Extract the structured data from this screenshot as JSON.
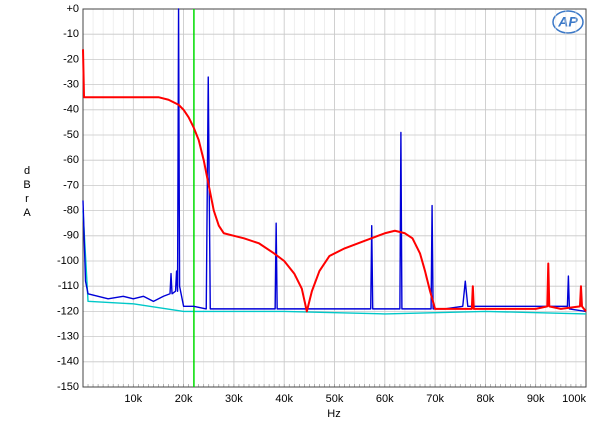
{
  "logo_text": "AP",
  "chart_data": {
    "type": "line",
    "xlabel": "Hz",
    "ylabel": "dBr A",
    "xlim": [
      0,
      100000
    ],
    "ylim": [
      -150,
      0
    ],
    "xticks": [
      {
        "value": 10000,
        "label": "10k"
      },
      {
        "value": 20000,
        "label": "20k"
      },
      {
        "value": 30000,
        "label": "30k"
      },
      {
        "value": 40000,
        "label": "40k"
      },
      {
        "value": 50000,
        "label": "50k"
      },
      {
        "value": 60000,
        "label": "60k"
      },
      {
        "value": 70000,
        "label": "70k"
      },
      {
        "value": 80000,
        "label": "80k"
      },
      {
        "value": 90000,
        "label": "90k"
      },
      {
        "value": 100000,
        "label": "100k"
      }
    ],
    "yticks": [
      {
        "value": 0,
        "label": "+0"
      },
      -10,
      -20,
      -30,
      -40,
      -50,
      -60,
      -70,
      -80,
      -90,
      -100,
      -110,
      -120,
      -130,
      -140,
      -150
    ],
    "grid": true,
    "vline": {
      "x": 22050,
      "color": "#00dd00"
    },
    "series": [
      {
        "color": "#00c8c8",
        "x": [
          0,
          1000,
          10000,
          20000,
          40000,
          60000,
          80000,
          100000
        ],
        "values": [
          -80,
          -116,
          -117,
          -120,
          -120,
          -121,
          -120,
          -121
        ]
      },
      {
        "color": "#0000d8",
        "x": [
          0,
          500,
          1000,
          3000,
          5000,
          8000,
          10000,
          12000,
          14000,
          16000,
          17300,
          17500,
          17700,
          18400,
          18600,
          18800,
          19000,
          19200,
          19600,
          20000,
          22000,
          24500,
          24900,
          25300,
          27000,
          30000,
          35000,
          38200,
          38400,
          38600,
          42000,
          47000,
          52000,
          57200,
          57400,
          57600,
          60000,
          63000,
          63200,
          63400,
          66000,
          69200,
          69400,
          69600,
          72000,
          75500,
          76000,
          76500,
          80000,
          85000,
          90000,
          92300,
          92500,
          92700,
          96300,
          96500,
          96700,
          100000
        ],
        "values": [
          -76,
          -108,
          -113,
          -114,
          -115,
          -114,
          -115,
          -114,
          -116,
          -114,
          -113,
          -105,
          -113,
          -112,
          -104,
          -112,
          0,
          -110,
          -114,
          -118,
          -118,
          -119,
          -27,
          -119,
          -119,
          -119,
          -119,
          -119,
          -85,
          -119,
          -119,
          -119,
          -119,
          -119,
          -86,
          -119,
          -119,
          -119,
          -49,
          -119,
          -119,
          -119,
          -78,
          -119,
          -119,
          -118,
          -108,
          -118,
          -118,
          -118,
          -118,
          -118,
          -108,
          -118,
          -118,
          -106,
          -119,
          -120
        ]
      },
      {
        "color": "#ff0000",
        "x": [
          0,
          200,
          500,
          1000,
          5000,
          10000,
          15000,
          17000,
          19000,
          20000,
          21000,
          22000,
          23000,
          24000,
          25000,
          26000,
          27000,
          28000,
          30000,
          32000,
          35000,
          38000,
          40000,
          42000,
          43500,
          44500,
          45500,
          47000,
          49000,
          52000,
          56000,
          60000,
          62000,
          64000,
          65500,
          67000,
          68000,
          69000,
          70000,
          75000,
          77300,
          77500,
          77700,
          80000,
          85000,
          90000,
          92300,
          92500,
          92700,
          95000,
          98800,
          99000,
          99200,
          100000
        ],
        "values": [
          -16,
          -35,
          -35,
          -35,
          -35,
          -35,
          -35,
          -36,
          -38,
          -40,
          -43,
          -47,
          -52,
          -60,
          -70,
          -80,
          -86,
          -89,
          -90,
          -91,
          -93,
          -97,
          -100,
          -105,
          -111,
          -120,
          -112,
          -104,
          -98,
          -95,
          -92,
          -89,
          -88,
          -89,
          -91,
          -97,
          -104,
          -112,
          -119,
          -119,
          -119,
          -110,
          -119,
          -119,
          -119,
          -119,
          -118,
          -101,
          -118,
          -119,
          -118,
          -110,
          -118,
          -120
        ]
      }
    ]
  }
}
